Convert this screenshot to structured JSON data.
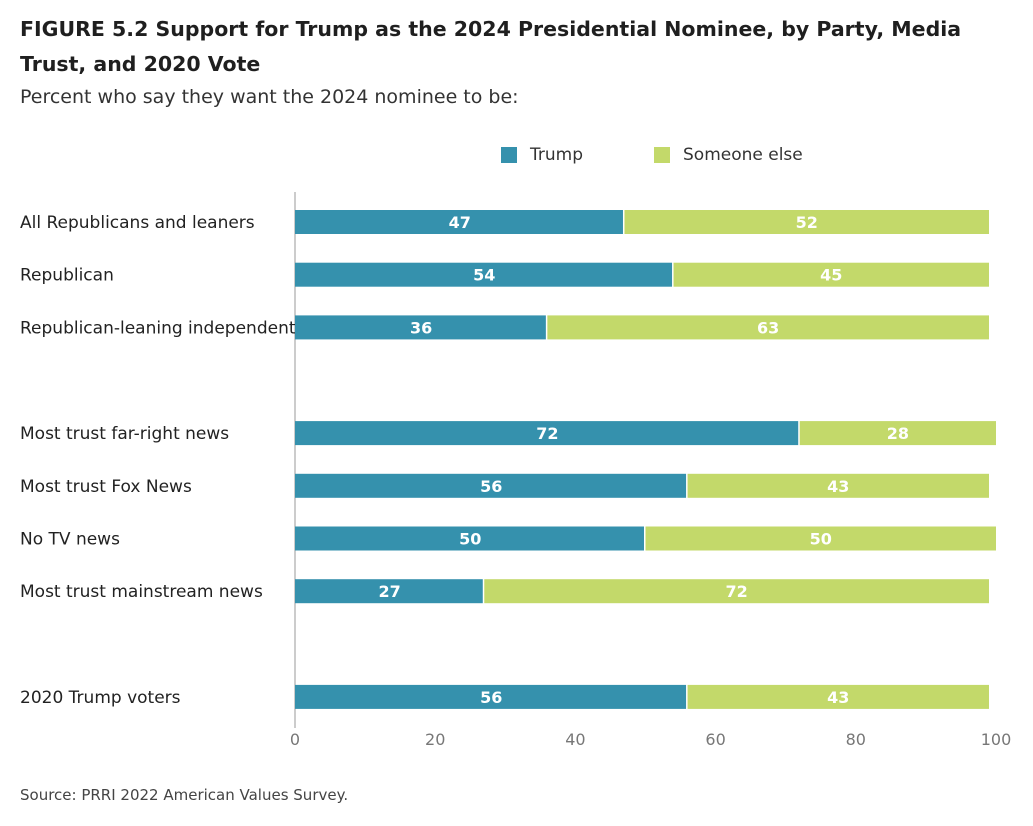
{
  "figure": {
    "title": "FIGURE 5.2  Support for Trump as the 2024 Presidential Nominee, by Party, Media Trust, and 2020 Vote",
    "subtitle": "Percent who say they want the 2024 nominee to be:",
    "source": "Source: PRRI 2022 American Values Survey."
  },
  "colors": {
    "trump": "#3591AD",
    "someone_else": "#C3D96A",
    "axis": "#cccccc"
  },
  "chart_data": {
    "type": "bar",
    "orientation": "horizontal",
    "stacked": true,
    "categories": [
      "All Republicans and leaners",
      "Republican",
      "Republican-leaning independent",
      "Most trust far-right news",
      "Most trust Fox News",
      "No TV news",
      "Most trust mainstream news",
      "2020 Trump voters"
    ],
    "groups": [
      [
        0,
        1,
        2
      ],
      [
        3,
        4,
        5,
        6
      ],
      [
        7
      ]
    ],
    "series": [
      {
        "name": "Trump",
        "values": [
          47,
          54,
          36,
          72,
          56,
          50,
          27,
          56
        ]
      },
      {
        "name": "Someone else",
        "values": [
          52,
          45,
          63,
          28,
          43,
          50,
          72,
          43
        ]
      }
    ],
    "xlim": [
      0,
      100
    ],
    "xticks": [
      0,
      20,
      40,
      60,
      80,
      100
    ],
    "legend": "top-center",
    "grid": false
  }
}
